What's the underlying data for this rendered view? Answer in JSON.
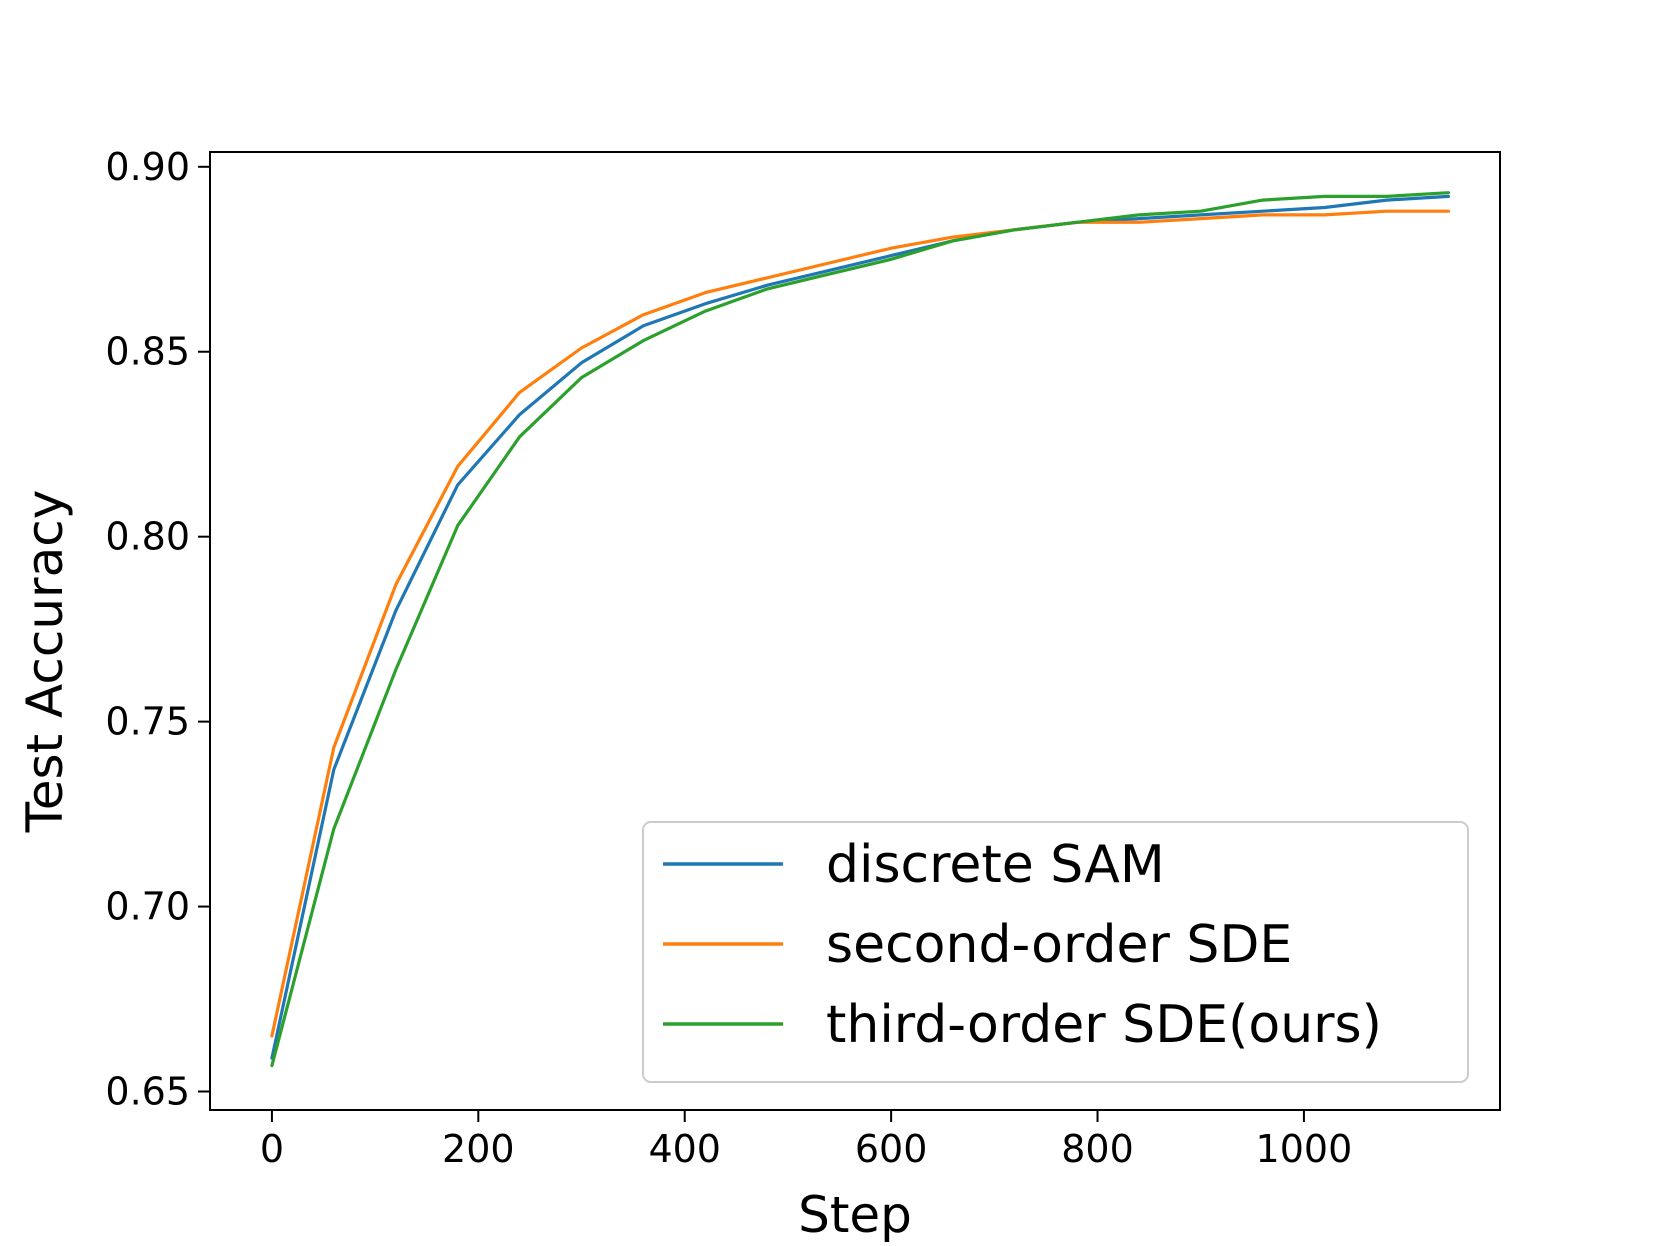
{
  "chart_data": {
    "type": "line",
    "title": "",
    "xlabel": "Step",
    "ylabel": "Test Accuracy",
    "xlim": [
      -60,
      1190
    ],
    "ylim": [
      0.645,
      0.904
    ],
    "xticks": [
      0,
      200,
      400,
      600,
      800,
      1000
    ],
    "xtick_labels": [
      "0",
      "200",
      "400",
      "600",
      "800",
      "1000"
    ],
    "yticks": [
      0.65,
      0.7,
      0.75,
      0.8,
      0.85,
      0.9
    ],
    "ytick_labels": [
      "0.65",
      "0.70",
      "0.75",
      "0.80",
      "0.85",
      "0.90"
    ],
    "grid": false,
    "legend_position": "lower-right",
    "x": [
      0,
      60,
      120,
      180,
      240,
      300,
      360,
      420,
      480,
      540,
      600,
      660,
      720,
      780,
      840,
      900,
      960,
      1020,
      1080,
      1140
    ],
    "series": [
      {
        "name": "discrete SAM",
        "color": "#1f77b4",
        "values": [
          0.659,
          0.737,
          0.78,
          0.814,
          0.833,
          0.847,
          0.857,
          0.863,
          0.868,
          0.872,
          0.876,
          0.88,
          0.883,
          0.885,
          0.886,
          0.887,
          0.888,
          0.889,
          0.891,
          0.892
        ]
      },
      {
        "name": "second-order SDE",
        "color": "#ff7f0e",
        "values": [
          0.665,
          0.743,
          0.787,
          0.819,
          0.839,
          0.851,
          0.86,
          0.866,
          0.87,
          0.874,
          0.878,
          0.881,
          0.883,
          0.885,
          0.885,
          0.886,
          0.887,
          0.887,
          0.888,
          0.888
        ]
      },
      {
        "name": "third-order SDE(ours)",
        "color": "#2ca02c",
        "values": [
          0.657,
          0.721,
          0.764,
          0.803,
          0.827,
          0.843,
          0.853,
          0.861,
          0.867,
          0.871,
          0.875,
          0.88,
          0.883,
          0.885,
          0.887,
          0.888,
          0.891,
          0.892,
          0.892,
          0.893
        ]
      }
    ]
  }
}
